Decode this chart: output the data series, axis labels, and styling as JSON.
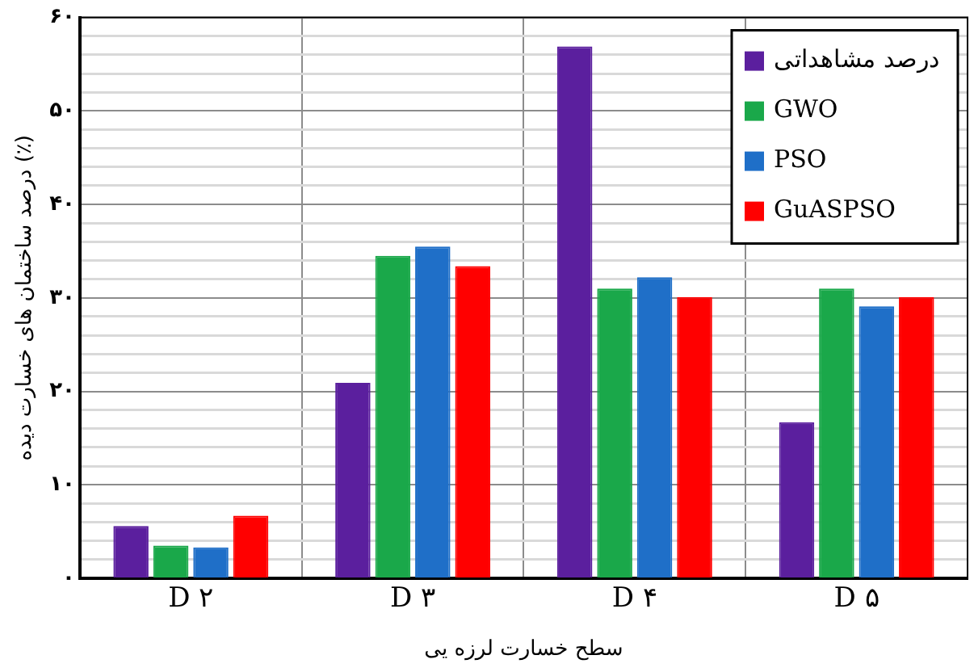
{
  "chart_data": {
    "type": "bar",
    "xlabel": "سطح خسارت لرزه یی",
    "ylabel": "درصد ساختمان های خسارت دیده (٪)",
    "categories": [
      "D ۲",
      "D ۳",
      "D ۴",
      "D ۵"
    ],
    "series": [
      {
        "name": "درصد مشاهداتی",
        "color": "#5b1f9e",
        "values": [
          5.6,
          20.9,
          56.9,
          16.7
        ]
      },
      {
        "name": "GWO",
        "color": "#1aa84a",
        "values": [
          3.5,
          34.5,
          31.0,
          31.0
        ]
      },
      {
        "name": "PSO",
        "color": "#1f6fc8",
        "values": [
          3.3,
          35.5,
          32.2,
          29.1
        ]
      },
      {
        "name": "GuASPSO",
        "color": "#ff0000",
        "values": [
          6.7,
          33.4,
          30.1,
          30.1
        ]
      }
    ],
    "ylim": [
      0,
      60
    ],
    "yticks": [
      {
        "value": 0,
        "label": "۰"
      },
      {
        "value": 2,
        "label": null
      },
      {
        "value": 4,
        "label": null
      },
      {
        "value": 6,
        "label": null
      },
      {
        "value": 8,
        "label": null
      },
      {
        "value": 10,
        "label": "۱۰"
      },
      {
        "value": 12,
        "label": null
      },
      {
        "value": 14,
        "label": null
      },
      {
        "value": 16,
        "label": null
      },
      {
        "value": 18,
        "label": null
      },
      {
        "value": 20,
        "label": "۲۰"
      },
      {
        "value": 22,
        "label": null
      },
      {
        "value": 24,
        "label": null
      },
      {
        "value": 26,
        "label": null
      },
      {
        "value": 28,
        "label": null
      },
      {
        "value": 30,
        "label": "۳۰"
      },
      {
        "value": 32,
        "label": null
      },
      {
        "value": 34,
        "label": null
      },
      {
        "value": 36,
        "label": null
      },
      {
        "value": 38,
        "label": null
      },
      {
        "value": 40,
        "label": "۴۰"
      },
      {
        "value": 42,
        "label": null
      },
      {
        "value": 44,
        "label": null
      },
      {
        "value": 46,
        "label": null
      },
      {
        "value": 48,
        "label": null
      },
      {
        "value": 50,
        "label": "۵۰"
      },
      {
        "value": 52,
        "label": null
      },
      {
        "value": 54,
        "label": null
      },
      {
        "value": 56,
        "label": null
      },
      {
        "value": 58,
        "label": null
      },
      {
        "value": 60,
        "label": "۶۰"
      }
    ],
    "grid": true,
    "legend": "top right"
  }
}
